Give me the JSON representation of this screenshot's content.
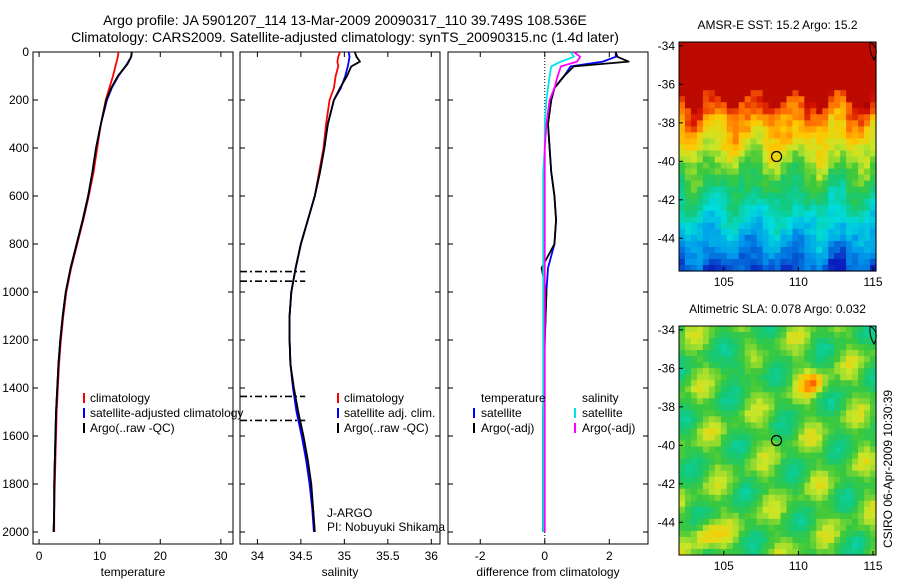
{
  "header": {
    "line1": "Argo profile: JA 5901207_114 13-Mar-2009 20090317_110 39.749S 108.536E",
    "line2": "Climatology: CARS2009. Satellite-adjusted climatology: synTS_20090315.nc (1.4d later)"
  },
  "side_label": "CSIRO 06-Apr-2009 10:30:39",
  "colors": {
    "climatology": "#ff0000",
    "satellite": "#0000ff",
    "argo": "#000000",
    "satellite_salinity": "#00e5e5",
    "argo_adj_salinity": "#ff00ff"
  },
  "chart_data": [
    {
      "type": "line",
      "name": "temperature-panel",
      "xlabel": "temperature",
      "ylabel": "",
      "xlim": [
        -1,
        32
      ],
      "ylim": [
        2050,
        0
      ],
      "xticks": [
        0,
        10,
        20,
        30
      ],
      "yticks": [
        0,
        200,
        400,
        600,
        800,
        1000,
        1200,
        1400,
        1600,
        1800,
        2000
      ],
      "depth": [
        0,
        20,
        50,
        100,
        150,
        200,
        300,
        400,
        500,
        600,
        700,
        800,
        900,
        1000,
        1100,
        1200,
        1300,
        1400,
        1500,
        1600,
        1700,
        1800,
        1900,
        2000
      ],
      "series": [
        {
          "name": "climatology",
          "color": "#ff0000",
          "values": [
            13.1,
            13.0,
            12.7,
            12.2,
            11.6,
            11.0,
            10.2,
            9.6,
            9.0,
            8.2,
            7.3,
            6.3,
            5.3,
            4.5,
            4.0,
            3.6,
            3.3,
            3.1,
            2.9,
            2.8,
            2.7,
            2.6,
            2.5,
            2.5
          ]
        },
        {
          "name": "satellite-adjusted climatology",
          "color": "#0000ff",
          "values": [
            15.3,
            15.2,
            14.5,
            13.1,
            12.0,
            11.2,
            10.2,
            9.4,
            8.8,
            8.1,
            7.2,
            6.2,
            5.2,
            4.4,
            3.9,
            3.5,
            3.2,
            3.0,
            2.8,
            2.7,
            2.6,
            2.5,
            2.5,
            2.4
          ]
        },
        {
          "name": "Argo(..raw -QC)",
          "color": "#000000",
          "values": [
            15.3,
            15.2,
            14.6,
            13.0,
            11.9,
            11.1,
            10.2,
            9.4,
            8.8,
            8.1,
            7.2,
            6.2,
            5.2,
            4.4,
            3.9,
            3.5,
            3.2,
            3.0,
            2.8,
            2.7,
            2.6,
            2.5,
            2.5,
            2.4
          ]
        }
      ],
      "legend": {
        "position": "lower-center",
        "entries": [
          "climatology",
          "satellite-adjusted climatology",
          "Argo(..raw -QC)"
        ]
      }
    },
    {
      "type": "line",
      "name": "salinity-panel",
      "xlabel": "salinity",
      "xlim": [
        33.8,
        36.1
      ],
      "ylim": [
        2050,
        0
      ],
      "xticks": [
        34,
        34.5,
        35,
        35.5,
        36
      ],
      "depth": [
        0,
        20,
        40,
        60,
        100,
        150,
        200,
        300,
        400,
        500,
        600,
        700,
        800,
        900,
        1000,
        1100,
        1200,
        1300,
        1400,
        1500,
        1600,
        1700,
        1800,
        1900,
        2000
      ],
      "series": [
        {
          "name": "climatology",
          "color": "#ff0000",
          "values": [
            34.95,
            34.93,
            34.92,
            34.93,
            34.9,
            34.88,
            34.83,
            34.79,
            34.76,
            34.71,
            34.66,
            34.58,
            34.5,
            34.44,
            34.39,
            34.37,
            34.37,
            34.38,
            34.41,
            34.46,
            34.52,
            34.57,
            34.61,
            34.64,
            34.66
          ]
        },
        {
          "name": "satellite adj. clim.",
          "color": "#0000ff",
          "values": [
            35.05,
            35.06,
            35.05,
            35.04,
            35.01,
            34.96,
            34.88,
            34.81,
            34.77,
            34.72,
            34.66,
            34.58,
            34.5,
            34.44,
            34.39,
            34.37,
            34.37,
            34.38,
            34.41,
            34.45,
            34.51,
            34.56,
            34.6,
            34.63,
            34.65
          ]
        },
        {
          "name": "Argo(..raw -QC)",
          "color": "#000000",
          "values": [
            35.12,
            35.14,
            35.18,
            35.08,
            35.03,
            34.95,
            34.88,
            34.81,
            34.77,
            34.72,
            34.66,
            34.58,
            34.5,
            34.44,
            34.39,
            34.37,
            34.37,
            34.38,
            34.42,
            34.47,
            34.53,
            34.58,
            34.62,
            34.64,
            34.66
          ]
        }
      ],
      "marker_depths": [
        915,
        955,
        1435,
        1535
      ],
      "legend": {
        "position": "lower-right",
        "entries": [
          "climatology",
          "satellite adj. clim.",
          "Argo(..raw -QC)"
        ]
      },
      "annotation": {
        "line1": "J-ARGO",
        "line2": "PI: Nobuyuki Shikama"
      }
    },
    {
      "type": "line",
      "name": "difference-panel",
      "xlabel": "difference from climatology",
      "xlim": [
        -3,
        3.2
      ],
      "ylim": [
        2050,
        0
      ],
      "xticks": [
        -2,
        0,
        2
      ],
      "depth": [
        0,
        20,
        40,
        60,
        100,
        150,
        200,
        300,
        400,
        500,
        600,
        700,
        800,
        900,
        1000,
        1200,
        1500,
        1800,
        2000
      ],
      "series": [
        {
          "name": "temperature satellite",
          "color": "#0000ff",
          "values": [
            2.2,
            2.2,
            1.8,
            0.8,
            0.6,
            0.3,
            0.2,
            0.1,
            0.15,
            0.2,
            0.3,
            0.35,
            0.3,
            0.1,
            0.05,
            0.0,
            -0.05,
            -0.05,
            -0.05
          ]
        },
        {
          "name": "temperature Argo(-adj)",
          "color": "#000000",
          "values": [
            2.2,
            2.25,
            2.6,
            0.9,
            0.6,
            0.3,
            0.2,
            0.1,
            0.15,
            0.2,
            0.3,
            0.35,
            0.3,
            -0.1,
            0.05,
            0.0,
            -0.05,
            -0.05,
            -0.05
          ]
        },
        {
          "name": "salinity satellite",
          "color": "#00e5e5",
          "values": [
            0.8,
            0.9,
            0.5,
            0.2,
            0.15,
            0.1,
            0.05,
            0.0,
            0.0,
            -0.05,
            -0.05,
            -0.05,
            -0.05,
            -0.05,
            -0.05,
            -0.05,
            -0.05,
            -0.05,
            -0.05
          ]
        },
        {
          "name": "salinity Argo(-adj)",
          "color": "#ff00ff",
          "values": [
            0.9,
            1.1,
            1.0,
            0.5,
            0.4,
            0.3,
            0.15,
            0.05,
            0.0,
            0.0,
            0.0,
            0.0,
            0.0,
            0.0,
            0.0,
            0.0,
            0.0,
            0.0,
            0.0
          ]
        }
      ],
      "legend": {
        "position": "center",
        "col1_title": "temperature",
        "col2_title": "salinity",
        "entries": [
          "satellite",
          "Argo(-adj)",
          "satellite",
          "Argo(-adj)"
        ]
      }
    },
    {
      "type": "heatmap",
      "name": "sst-map",
      "title": "AMSR-E SST: 15.2 Argo: 15.2",
      "xlim": [
        102,
        115.2
      ],
      "ylim": [
        -45.7,
        -33.8
      ],
      "xticks": [
        105,
        110,
        115
      ],
      "yticks": [
        -34,
        -36,
        -38,
        -40,
        -42,
        -44
      ],
      "marker": {
        "lon": 108.536,
        "lat": -39.749
      }
    },
    {
      "type": "heatmap",
      "name": "sla-map",
      "title": "Altimetric SLA: 0.078 Argo: 0.032",
      "xlim": [
        102,
        115.2
      ],
      "ylim": [
        -45.7,
        -33.8
      ],
      "xticks": [
        105,
        110,
        115
      ],
      "yticks": [
        -34,
        -36,
        -38,
        -40,
        -42,
        -44
      ],
      "marker": {
        "lon": 108.536,
        "lat": -39.749
      }
    }
  ]
}
